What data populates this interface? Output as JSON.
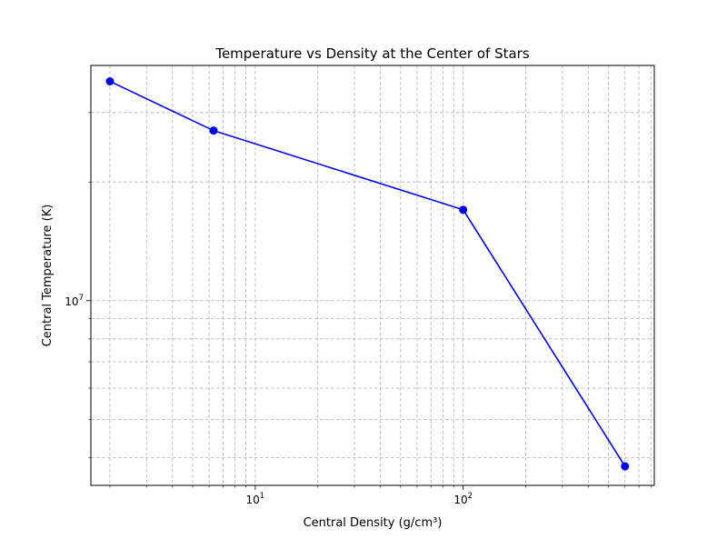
{
  "chart_data": {
    "type": "line",
    "title": "Temperature vs Density at the Center of Stars",
    "xlabel": "Central Density (g/cm³)",
    "ylabel": "Central Temperature (K)",
    "x_scale": "log",
    "y_scale": "log",
    "xlim": [
      1.62,
      830
    ],
    "ylim": [
      3400000,
      39500000
    ],
    "x_tick_labels": [
      {
        "value": 10,
        "base": "10",
        "exp": "1"
      },
      {
        "value": 100,
        "base": "10",
        "exp": "2"
      }
    ],
    "y_tick_labels": [
      {
        "value": 10000000,
        "base": "10",
        "exp": "7"
      }
    ],
    "x_minor_ticks": [
      2,
      3,
      4,
      5,
      6,
      7,
      8,
      9,
      20,
      30,
      40,
      50,
      60,
      70,
      80,
      90,
      200,
      300,
      400,
      500,
      600,
      700,
      800
    ],
    "y_minor_ticks": [
      4000000,
      5000000,
      6000000,
      7000000,
      8000000,
      9000000,
      20000000,
      30000000
    ],
    "grid": true,
    "series": [
      {
        "x": [
          2.0,
          6.3,
          100,
          600
        ],
        "y": [
          36000000,
          27000000,
          17000000,
          3800000
        ],
        "color": "#0000ff",
        "marker": "circle"
      }
    ]
  }
}
